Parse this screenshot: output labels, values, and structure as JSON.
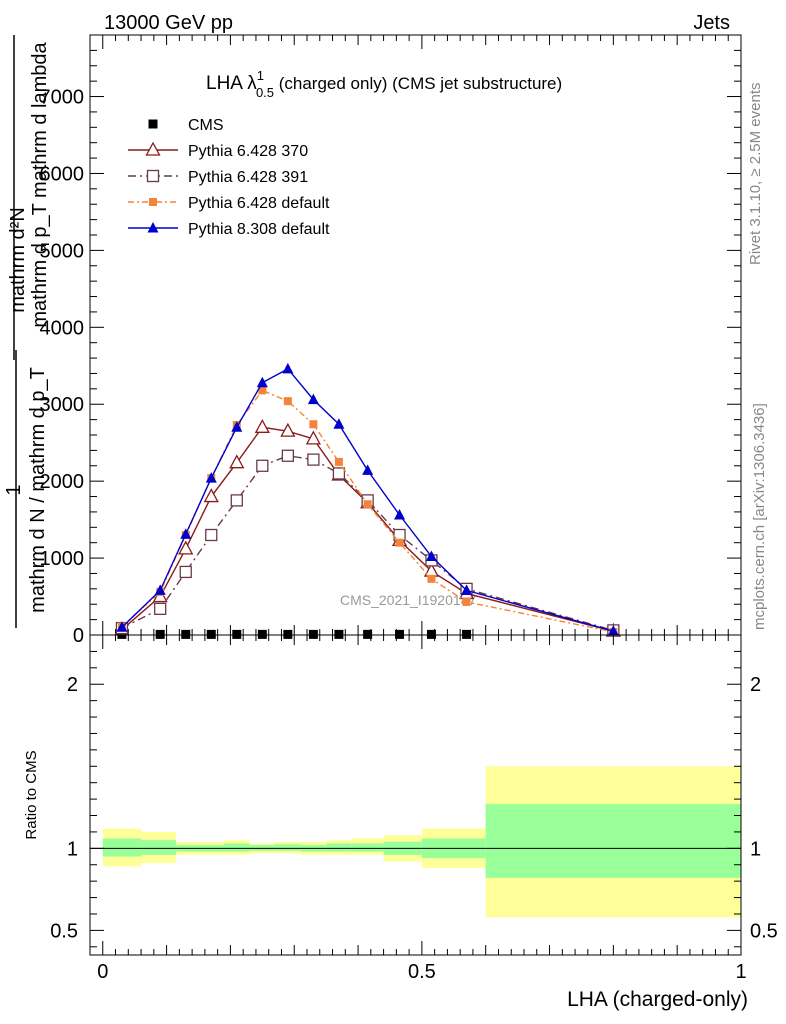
{
  "header": {
    "left": "13000 GeV pp",
    "right": "Jets"
  },
  "side_labels": {
    "rivet": "Rivet 3.1.10, ≥ 2.5M events",
    "mcplots": "mcplots.cern.ch [arXiv:1306.3436]"
  },
  "watermark": "CMS_2021_I1920187",
  "colors": {
    "cms": "#000000",
    "py370": "#8b1a1a",
    "py391": "#6b3a4a",
    "py6def": "#f5843a",
    "py8def": "#0000cc",
    "band_inner": "#99ff99",
    "band_outer": "#ffff99"
  },
  "chart_data": [
    {
      "type": "line",
      "title_main": "LHA λ",
      "title_sup": "1",
      "title_sub": "0.5",
      "title_rest": " (charged only) (CMS jet substructure)",
      "ylabel_num": "mathrm d²N",
      "ylabel_line2": "mathrm d p_T mathrm d lambda",
      "ylabel_prefix": "1",
      "ylabel_denom": "mathrm d N / mathrm d p_T",
      "ylim": [
        0,
        7800
      ],
      "yticks": [
        0,
        1000,
        2000,
        3000,
        4000,
        5000,
        6000,
        7000
      ],
      "ytick_labels": [
        "0",
        "1000",
        "2000",
        "3000",
        "4000",
        "5000",
        "6000",
        "7000"
      ],
      "xlim": [
        -0.02,
        1.0
      ],
      "legend_position": "top-left",
      "series": [
        {
          "name": "CMS",
          "key": "cms",
          "marker": "square",
          "x": [
            0.03,
            0.09,
            0.13,
            0.17,
            0.21,
            0.25,
            0.29,
            0.33,
            0.37,
            0.415,
            0.465,
            0.515,
            0.57
          ],
          "values": [
            8,
            8,
            8,
            8,
            8,
            8,
            8,
            8,
            8,
            8,
            8,
            8,
            8
          ]
        },
        {
          "name": "Pythia 6.428 370",
          "key": "py370",
          "marker": "triangle-open",
          "dash": "",
          "x": [
            0.03,
            0.09,
            0.13,
            0.17,
            0.21,
            0.25,
            0.29,
            0.33,
            0.37,
            0.415,
            0.465,
            0.515,
            0.57,
            0.8
          ],
          "values": [
            70,
            500,
            1120,
            1800,
            2240,
            2700,
            2650,
            2550,
            2080,
            1720,
            1230,
            830,
            540,
            50
          ]
        },
        {
          "name": "Pythia 6.428 391",
          "key": "py391",
          "marker": "square-open",
          "dash": "8,4,2,4",
          "x": [
            0.03,
            0.09,
            0.13,
            0.17,
            0.21,
            0.25,
            0.29,
            0.33,
            0.37,
            0.415,
            0.465,
            0.515,
            0.57,
            0.8
          ],
          "values": [
            90,
            340,
            820,
            1300,
            1750,
            2200,
            2330,
            2280,
            2100,
            1750,
            1300,
            970,
            600,
            60
          ]
        },
        {
          "name": "Pythia 6.428 default",
          "key": "py6def",
          "marker": "square-filled",
          "dash": "6,3,2,3",
          "x": [
            0.03,
            0.09,
            0.13,
            0.17,
            0.21,
            0.25,
            0.29,
            0.33,
            0.37,
            0.415,
            0.465,
            0.515,
            0.57,
            0.8
          ],
          "values": [
            110,
            560,
            1300,
            2040,
            2730,
            3180,
            3040,
            2740,
            2250,
            1700,
            1200,
            730,
            430,
            40
          ]
        },
        {
          "name": "Pythia 8.308 default",
          "key": "py8def",
          "marker": "triangle-filled",
          "dash": "",
          "x": [
            0.03,
            0.09,
            0.13,
            0.17,
            0.21,
            0.25,
            0.29,
            0.33,
            0.37,
            0.415,
            0.465,
            0.515,
            0.57,
            0.8
          ],
          "values": [
            100,
            580,
            1310,
            2040,
            2700,
            3280,
            3460,
            3060,
            2740,
            2140,
            1560,
            1020,
            580,
            50
          ]
        }
      ]
    },
    {
      "type": "area",
      "ylabel": "Ratio to CMS",
      "xlabel": "LHA (charged-only)",
      "ylim": [
        0.35,
        2.3
      ],
      "xlim": [
        -0.02,
        1.0
      ],
      "yticks": [
        0.5,
        1,
        2
      ],
      "ytick_labels": [
        "0.5",
        "1",
        "2"
      ],
      "xticks": [
        0,
        0.5,
        1
      ],
      "xtick_labels": [
        "0",
        "0.5",
        "1"
      ],
      "bins": [
        {
          "x0": 0.0,
          "x1": 0.06,
          "inner": [
            0.95,
            1.06
          ],
          "outer": [
            0.89,
            1.12
          ]
        },
        {
          "x0": 0.06,
          "x1": 0.115,
          "inner": [
            0.96,
            1.05
          ],
          "outer": [
            0.91,
            1.1
          ]
        },
        {
          "x0": 0.115,
          "x1": 0.19,
          "inner": [
            0.98,
            1.02
          ],
          "outer": [
            0.96,
            1.04
          ]
        },
        {
          "x0": 0.19,
          "x1": 0.23,
          "inner": [
            0.98,
            1.03
          ],
          "outer": [
            0.96,
            1.05
          ]
        },
        {
          "x0": 0.23,
          "x1": 0.27,
          "inner": [
            0.985,
            1.02
          ],
          "outer": [
            0.97,
            1.03
          ]
        },
        {
          "x0": 0.27,
          "x1": 0.31,
          "inner": [
            0.985,
            1.025
          ],
          "outer": [
            0.97,
            1.04
          ]
        },
        {
          "x0": 0.31,
          "x1": 0.35,
          "inner": [
            0.98,
            1.02
          ],
          "outer": [
            0.96,
            1.04
          ]
        },
        {
          "x0": 0.35,
          "x1": 0.39,
          "inner": [
            0.98,
            1.03
          ],
          "outer": [
            0.96,
            1.05
          ]
        },
        {
          "x0": 0.39,
          "x1": 0.44,
          "inner": [
            0.98,
            1.03
          ],
          "outer": [
            0.96,
            1.06
          ]
        },
        {
          "x0": 0.44,
          "x1": 0.5,
          "inner": [
            0.96,
            1.04
          ],
          "outer": [
            0.92,
            1.08
          ]
        },
        {
          "x0": 0.5,
          "x1": 0.6,
          "inner": [
            0.94,
            1.06
          ],
          "outer": [
            0.88,
            1.12
          ]
        },
        {
          "x0": 0.6,
          "x1": 1.0,
          "inner": [
            0.82,
            1.27
          ],
          "outer": [
            0.58,
            1.5
          ]
        }
      ]
    }
  ]
}
